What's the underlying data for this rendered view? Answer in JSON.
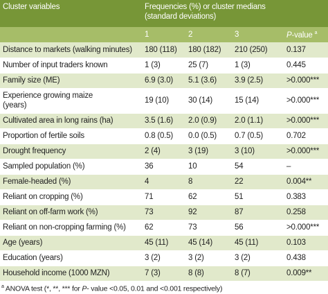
{
  "header": {
    "label": "Cluster variables",
    "group": [
      "Frequencies (%) or cluster medians",
      "(standard deviations)"
    ]
  },
  "columns": [
    "1",
    "2",
    "3"
  ],
  "p_value_header": {
    "italic": "P",
    "text": "-value",
    "sup": "a"
  },
  "rows": [
    [
      [
        "Distance to markets (walking minutes)"
      ],
      "180 (118)",
      "180 (182)",
      "210 (250)",
      "0.137"
    ],
    [
      [
        "Number of input traders known"
      ],
      "1 (3)",
      "25 (7)",
      "1 (3)",
      "0.445"
    ],
    [
      [
        "Family size (ME)"
      ],
      "6.9 (3.0)",
      "5.1 (3.6)",
      "3.9 (2.5)",
      ">0.000***"
    ],
    [
      [
        "Experience growing maize",
        "(years)"
      ],
      "19 (10)",
      "30 (14)",
      "15 (14)",
      ">0.000***"
    ],
    [
      [
        "Cultivated area in long rains (ha)"
      ],
      "3.5 (1.6)",
      "2.0 (0.9)",
      "2.0 (1.1)",
      ">0.000***"
    ],
    [
      [
        "Proportion of fertile soils"
      ],
      "0.8 (0.5)",
      "0.0 (0.5)",
      "0.7 (0.5)",
      "0.702"
    ],
    [
      [
        "Drought frequency"
      ],
      "2 (4)",
      "3 (19)",
      "3 (10)",
      ">0.000***"
    ],
    [
      [
        "Sampled population (%)"
      ],
      "36",
      "10",
      "54",
      "–"
    ],
    [
      [
        "Female-headed (%)"
      ],
      "4",
      "8",
      "22",
      "0.004**"
    ],
    [
      [
        "Reliant on cropping (%)"
      ],
      "71",
      "62",
      "51",
      "0.383"
    ],
    [
      [
        "Reliant on off-farm work (%)"
      ],
      "73",
      "92",
      "87",
      "0.258"
    ],
    [
      [
        "Reliant on non-cropping farming (%)"
      ],
      "62",
      "73",
      "56",
      ">0.000***"
    ],
    [
      [
        "Age (years)"
      ],
      "45 (11)",
      "45 (14)",
      "45 (11)",
      "0.103"
    ],
    [
      [
        "Education (years)"
      ],
      "3 (2)",
      "3 (2)",
      "3 (2)",
      "0.438"
    ],
    [
      [
        "Household income (1000 MZN)"
      ],
      "7 (3)",
      "8 (8)",
      "8 (7)",
      "0.009**"
    ]
  ],
  "footnote": {
    "sup": "a",
    "text1": "ANOVA test (*, **, *** for ",
    "italic": "P",
    "text2": "- value <0.05, 0.01 and <0.001 respectively)"
  }
}
